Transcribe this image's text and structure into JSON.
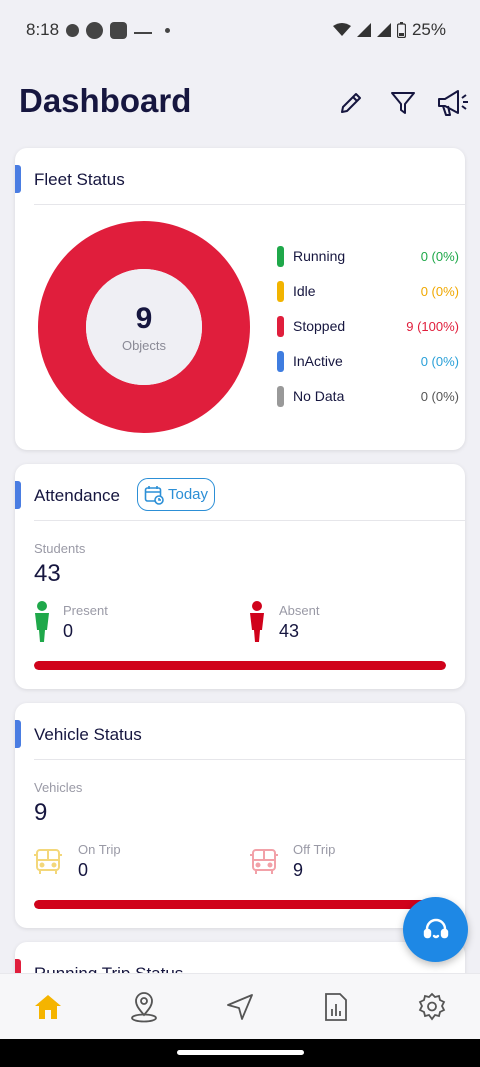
{
  "status_bar": {
    "time": "8:18",
    "battery": "25%"
  },
  "header": {
    "title": "Dashboard"
  },
  "fleet": {
    "title": "Fleet Status",
    "total": "9",
    "total_label": "Objects",
    "items": [
      {
        "label": "Running",
        "value": "0 (0%)",
        "color": "#1fa84a"
      },
      {
        "label": "Idle",
        "value": "0 (0%)",
        "color": "#f2b400"
      },
      {
        "label": "Stopped",
        "value": "9 (100%)",
        "color": "#e01e3c"
      },
      {
        "label": "InActive",
        "value": "0 (0%)",
        "color": "#3f7de0"
      },
      {
        "label": "No Data",
        "value": "0 (0%)",
        "color": "#999999"
      }
    ],
    "chart_data": {
      "type": "pie",
      "categories": [
        "Running",
        "Idle",
        "Stopped",
        "InActive",
        "No Data"
      ],
      "values": [
        0,
        0,
        9,
        0,
        0
      ]
    }
  },
  "attendance": {
    "title": "Attendance",
    "today_label": "Today",
    "students_label": "Students",
    "students_count": "43",
    "present_label": "Present",
    "present_value": "0",
    "absent_label": "Absent",
    "absent_value": "43",
    "absent_fraction": 1.0
  },
  "vehicle": {
    "title": "Vehicle Status",
    "vehicles_label": "Vehicles",
    "vehicles_count": "9",
    "on_trip_label": "On Trip",
    "on_trip_value": "0",
    "off_trip_label": "Off Trip",
    "off_trip_value": "9",
    "off_trip_fraction": 1.0
  },
  "running_trip": {
    "title": "Running Trip Status"
  },
  "colors": {
    "accent_blue": "#4a7de2",
    "progress_red": "#d0021b",
    "present_green": "#1fa84a",
    "absent_red": "#d0021b",
    "nav_active": "#f5b400",
    "fab_blue": "#1e88e5"
  },
  "icons": {
    "header": [
      "edit-icon",
      "filter-icon",
      "announcement-icon"
    ],
    "nav": [
      "home-icon",
      "location-icon",
      "navigate-icon",
      "reports-icon",
      "settings-icon"
    ],
    "fab": "support-headset-icon"
  }
}
